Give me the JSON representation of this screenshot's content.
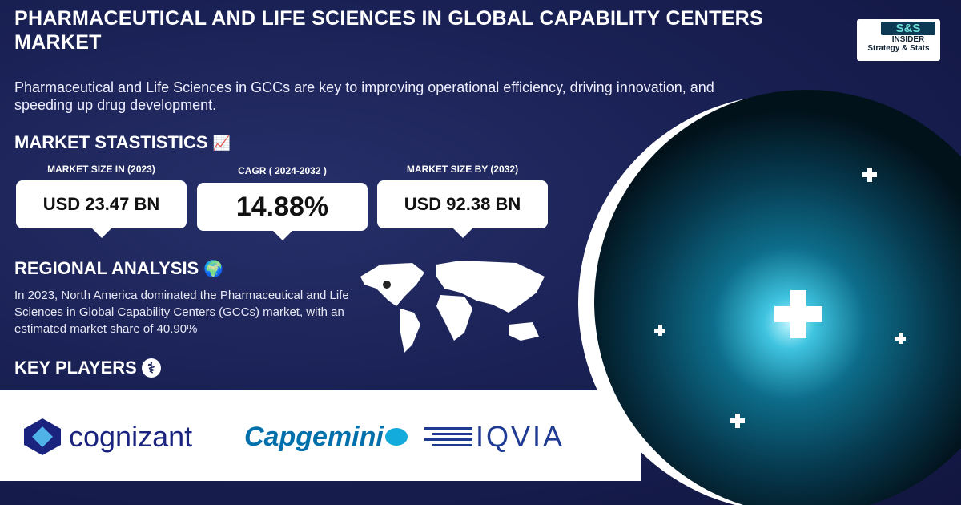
{
  "header": {
    "title": "Pharmaceutical and Life Sciences in Global Capability Centers Market",
    "subtitle": "Pharmaceutical and Life Sciences in GCCs are key to improving operational efficiency, driving innovation, and speeding up drug development."
  },
  "brand": {
    "logo_top": "S&S",
    "logo_mid": "INSIDER",
    "logo_bottom": "Strategy & Stats"
  },
  "stats": {
    "heading": "MARKET STASTISTICS",
    "icon": "growth-chart-icon",
    "items": [
      {
        "label": "MARKET SIZE IN (2023)",
        "value": "USD 23.47 BN"
      },
      {
        "label": "CAGR ( 2024-2032 )",
        "value": "14.88%"
      },
      {
        "label": "MARKET SIZE BY (2032)",
        "value": "USD 92.38 BN"
      }
    ]
  },
  "regional": {
    "heading": "REGIONAL ANALYSIS",
    "icon": "globe-pin-icon",
    "text": "In 2023, North America dominated the Pharmaceutical and Life Sciences in Global Capability Centers (GCCs) market, with an estimated market share of 40.90%"
  },
  "players": {
    "heading": "KEY PLAYERS",
    "icon": "person-icon",
    "logos": [
      {
        "name": "cognizant",
        "color": "#1a237e"
      },
      {
        "name": "Capgemini",
        "color": "#0070ad"
      },
      {
        "name": "IQVIA",
        "color": "#1f3a93"
      }
    ]
  },
  "colors": {
    "background": "#1a2155",
    "accent": "#0d6d8a"
  }
}
